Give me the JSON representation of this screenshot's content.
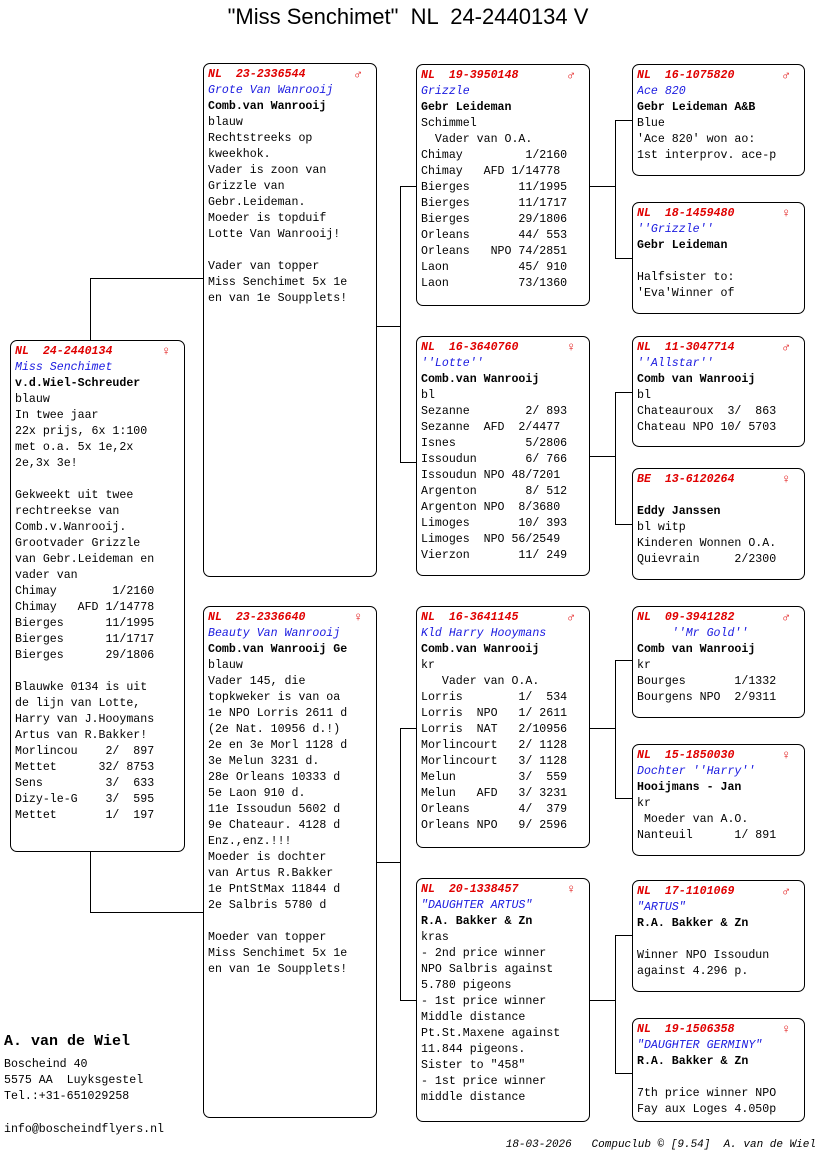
{
  "title": "\"Miss Senchimet\"  NL  24-2440134 V",
  "pigeons": [
    {
      "ring": "NL  24-2440134",
      "sex": "♀",
      "name": "Miss Senchimet",
      "owner": "v.d.Wiel-Schreuder",
      "lines": [
        "blauw",
        "In twee jaar",
        "22x prijs, 6x 1:100",
        "met o.a. 5x 1e,2x",
        "2e,3x 3e!",
        "",
        "Gekweekt uit twee",
        "rechtreekse van",
        "Comb.v.Wanrooij.",
        "Grootvader Grizzle",
        "van Gebr.Leideman en",
        "vader van",
        "Chimay        1/2160",
        "Chimay   AFD 1/14778",
        "Bierges      11/1995",
        "Bierges      11/1717",
        "Bierges      29/1806",
        "",
        "Blauwke 0134 is uit",
        "de lijn van Lotte,",
        "Harry van J.Hooymans",
        "Artus van R.Bakker!",
        "Morlincou    2/  897",
        "Mettet      32/ 8753",
        "Sens         3/  633",
        "Dizy-le-G    3/  595",
        "Mettet       1/  197"
      ]
    },
    {
      "ring": "NL  23-2336544",
      "sex": "♂",
      "name": "Grote Van Wanrooij",
      "owner": "Comb.van Wanrooij",
      "lines": [
        "blauw",
        "Rechtstreeks op",
        "kweekhok.",
        "Vader is zoon van",
        "Grizzle van",
        "Gebr.Leideman.",
        "Moeder is topduif",
        "Lotte Van Wanrooij!",
        "",
        "Vader van topper",
        "Miss Senchimet 5x 1e",
        "en van 1e Soupplets!"
      ]
    },
    {
      "ring": "NL  23-2336640",
      "sex": "♀",
      "name": "Beauty Van Wanrooij",
      "owner": "Comb.van Wanrooij Ge",
      "lines": [
        "blauw",
        "Vader 145, die",
        "topkweker is van oa",
        "1e NPO Lorris 2611 d",
        "(2e Nat. 10956 d.!)",
        "2e en 3e Morl 1128 d",
        "3e Melun 3231 d.",
        "28e Orleans 10333 d",
        "5e Laon 910 d.",
        "11e Issoudun 5602 d",
        "9e Chateaur. 4128 d",
        "Enz.,enz.!!!",
        "Moeder is dochter",
        "van Artus R.Bakker",
        "1e PntStMax 11844 d",
        "2e Salbris 5780 d",
        "",
        "Moeder van topper",
        "Miss Senchimet 5x 1e",
        "en van 1e Soupplets!"
      ]
    },
    {
      "ring": "NL  19-3950148",
      "sex": "♂",
      "name": "Grizzle",
      "owner": "Gebr Leideman",
      "lines": [
        "Schimmel",
        "  Vader van O.A.",
        "Chimay         1/2160",
        "Chimay   AFD 1/14778",
        "Bierges       11/1995",
        "Bierges       11/1717",
        "Bierges       29/1806",
        "Orleans       44/ 553",
        "Orleans   NPO 74/2851",
        "Laon          45/ 910",
        "Laon          73/1360"
      ]
    },
    {
      "ring": "NL  16-3640760",
      "sex": "♀",
      "name": "''Lotte''",
      "owner": "Comb.van Wanrooij",
      "lines": [
        "bl",
        "Sezanne        2/ 893",
        "Sezanne  AFD  2/4477",
        "Isnes          5/2806",
        "Issoudun       6/ 766",
        "Issoudun NPO 48/7201",
        "Argenton       8/ 512",
        "Argenton NPO  8/3680",
        "Limoges       10/ 393",
        "Limoges  NPO 56/2549",
        "Vierzon       11/ 249"
      ]
    },
    {
      "ring": "NL  16-3641145",
      "sex": "♂",
      "name": "Kld Harry Hooymans",
      "owner": "Comb.van Wanrooij",
      "lines": [
        "kr",
        "   Vader van O.A.",
        "Lorris        1/  534",
        "Lorris  NPO   1/ 2611",
        "Lorris  NAT   2/10956",
        "Morlincourt   2/ 1128",
        "Morlincourt   3/ 1128",
        "Melun         3/  559",
        "Melun   AFD   3/ 3231",
        "Orleans       4/  379",
        "Orleans NPO   9/ 2596"
      ]
    },
    {
      "ring": "NL  20-1338457",
      "sex": "♀",
      "name": "\"DAUGHTER ARTUS\"",
      "owner": "R.A. Bakker & Zn",
      "lines": [
        "kras",
        "- 2nd price winner",
        "NPO Salbris against",
        "5.780 pigeons",
        "- 1st price winner",
        "Middle distance",
        "Pt.St.Maxene against",
        "11.844 pigeons.",
        "Sister to \"458\"",
        "- 1st price winner",
        "middle distance"
      ]
    },
    {
      "ring": "NL  16-1075820",
      "sex": "♂",
      "name": "Ace 820",
      "owner": "Gebr Leideman A&B",
      "lines": [
        "Blue",
        "'Ace 820' won ao:",
        "1st interprov. ace-p"
      ]
    },
    {
      "ring": "NL  18-1459480",
      "sex": "♀",
      "name": "''Grizzle''",
      "owner": "Gebr Leideman",
      "lines": [
        "",
        "Halfsister to:",
        "'Eva'Winner of"
      ]
    },
    {
      "ring": "NL  11-3047714",
      "sex": "♂",
      "name": "''Allstar''",
      "owner": "Comb van Wanrooij",
      "lines": [
        "bl",
        "Chateauroux  3/  863",
        "Chateau NPO 10/ 5703"
      ]
    },
    {
      "ring": "BE  13-6120264",
      "sex": "♀",
      "name": "",
      "owner": "Eddy Janssen",
      "lines": [
        "bl witp",
        "Kinderen Wonnen O.A.",
        "Quievrain     2/2300"
      ]
    },
    {
      "ring": "NL  09-3941282",
      "sex": "♂",
      "name": "     ''Mr Gold''",
      "owner": "Comb van Wanrooij",
      "lines": [
        "kr",
        "Bourges       1/1332",
        "Bourgens NPO  2/9311"
      ]
    },
    {
      "ring": "NL  15-1850030",
      "sex": "♀",
      "name": "Dochter ''Harry''",
      "owner": "Hooijmans - Jan",
      "lines": [
        "kr",
        " Moeder van A.O.",
        "Nanteuil      1/ 891"
      ]
    },
    {
      "ring": "NL  17-1101069",
      "sex": "♂",
      "name": "\"ARTUS\"",
      "owner": "R.A. Bakker & Zn",
      "lines": [
        "",
        "Winner NPO Issoudun",
        "against 4.296 p."
      ]
    },
    {
      "ring": "NL  19-1506358",
      "sex": "♀",
      "name": "\"DAUGHTER GERMINY\"",
      "owner": "R.A. Bakker & Zn",
      "lines": [
        "",
        "7th price winner NPO",
        "Fay aux Loges 4.050p"
      ]
    }
  ],
  "breeder": {
    "name": "A. van de Wiel",
    "address": [
      "Boscheind 40",
      "5575 AA  Luyksgestel",
      "Tel.:+31-651029258"
    ],
    "email": "info@boscheindflyers.nl"
  },
  "footer": "18-03-2026   Compuclub © [9.54]  A. van de Wiel"
}
